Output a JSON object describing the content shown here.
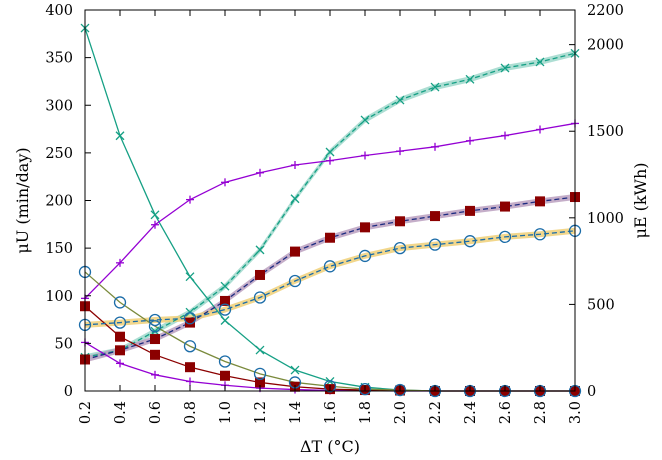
{
  "chart_data": {
    "type": "line",
    "xlabel": "ΔT (°C)",
    "ylabel_left": "μU (min/day)",
    "ylabel_right": "μE (kWh)",
    "x": [
      0.2,
      0.4,
      0.6,
      0.8,
      1.0,
      1.2,
      1.4,
      1.6,
      1.8,
      2.0,
      2.2,
      2.4,
      2.6,
      2.8,
      3.0
    ],
    "x_tick_labels": [
      "0.2",
      "0.4",
      "0.6",
      "0.8",
      "1.0",
      "1.2",
      "1.4",
      "1.6",
      "1.8",
      "2.0",
      "2.2",
      "2.4",
      "2.6",
      "2.8",
      "3.0"
    ],
    "xlim": [
      0.2,
      3.0
    ],
    "ylim_left": [
      0,
      400
    ],
    "ylim_right": [
      0,
      2200
    ],
    "left_ticks": [
      0,
      50,
      100,
      150,
      200,
      250,
      300,
      350,
      400
    ],
    "right_ticks": [
      0,
      500,
      1000,
      1500,
      2000,
      2200
    ],
    "grid": false,
    "legend": "none",
    "series": [
      {
        "axis": "left",
        "marker": "x",
        "color": "#16a085",
        "band": false,
        "values": [
          381,
          268,
          185,
          120,
          74,
          43,
          22,
          10,
          4,
          1,
          0,
          0,
          0,
          0,
          0
        ]
      },
      {
        "axis": "right",
        "marker": "x",
        "color": "#16a085",
        "band": true,
        "band_color": "#9fd8cb",
        "values": [
          195,
          235,
          345,
          455,
          605,
          815,
          1110,
          1380,
          1565,
          1680,
          1755,
          1800,
          1865,
          1900,
          1950
        ]
      },
      {
        "axis": "right",
        "marker": "cross",
        "color": "#9400d3",
        "band": false,
        "values": [
          535,
          740,
          960,
          1105,
          1205,
          1260,
          1305,
          1330,
          1360,
          1385,
          1410,
          1445,
          1475,
          1510,
          1545
        ]
      },
      {
        "axis": "left",
        "marker": "cross",
        "color": "#9400d3",
        "band": false,
        "values": [
          51,
          29,
          17,
          10,
          6,
          3,
          1.5,
          0.5,
          0.2,
          0,
          0,
          0,
          0,
          0,
          0
        ]
      },
      {
        "axis": "right",
        "marker": "filled-square",
        "color": "#8b0000",
        "line_color": "#1c2b80",
        "band": true,
        "band_color": "#bba0c0",
        "values": [
          182,
          235,
          300,
          395,
          520,
          670,
          805,
          885,
          945,
          980,
          1010,
          1040,
          1065,
          1095,
          1120
        ]
      },
      {
        "axis": "left",
        "marker": "filled-square",
        "color": "#8b0000",
        "band": false,
        "values": [
          89,
          57,
          38,
          25,
          16,
          9,
          4.5,
          2,
          1,
          0.5,
          0,
          0,
          0,
          0,
          0
        ]
      },
      {
        "axis": "right",
        "marker": "open-circle",
        "color": "#1b6ca8",
        "band": true,
        "band_color": "#f0d078",
        "values": [
          382,
          395,
          410,
          420,
          470,
          540,
          635,
          720,
          780,
          825,
          845,
          865,
          890,
          905,
          925
        ]
      },
      {
        "axis": "left",
        "marker": "open-circle",
        "color": "#1b6ca8",
        "line_color": "#7a8a3c",
        "band": false,
        "values": [
          125,
          93,
          68,
          47,
          31,
          18,
          9,
          5,
          2,
          1,
          0,
          0,
          0,
          0,
          0
        ]
      }
    ]
  }
}
